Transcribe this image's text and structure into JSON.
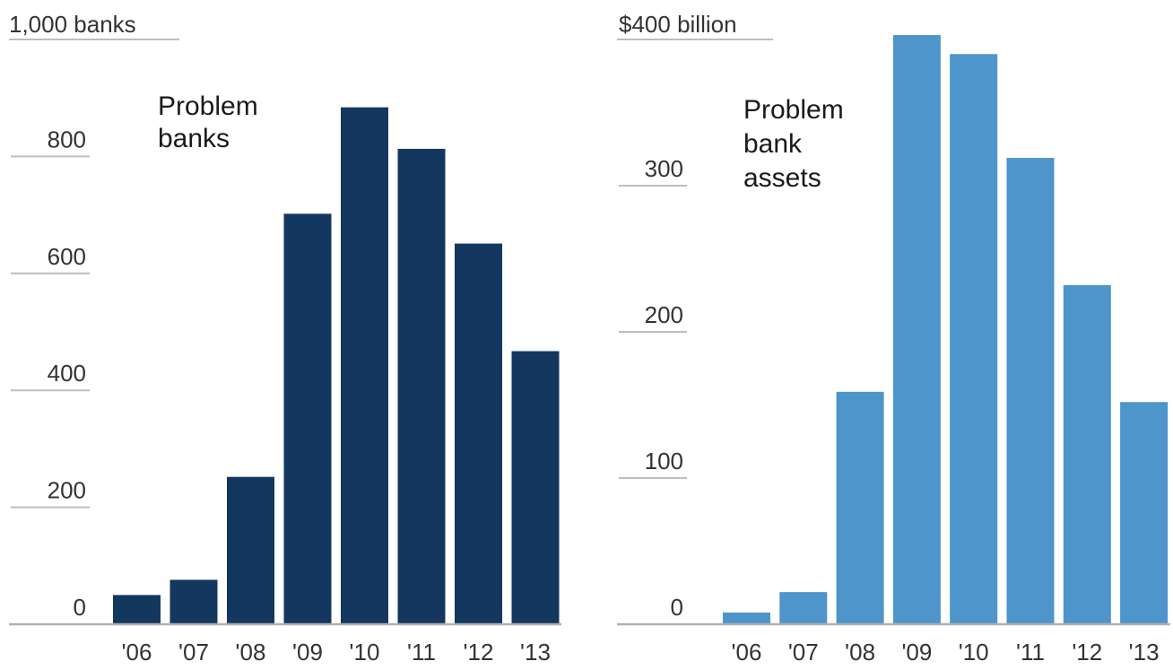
{
  "chart_data": [
    {
      "type": "bar",
      "title": "",
      "xlabel": "",
      "ylabel": "",
      "unit_label": "1,000 banks",
      "annotation": [
        "Problem",
        "banks"
      ],
      "categories": [
        "'06",
        "'07",
        "'08",
        "'09",
        "'10",
        "'11",
        "'12",
        "'13"
      ],
      "values": [
        50,
        76,
        252,
        702,
        884,
        813,
        651,
        467
      ],
      "yticks": [
        "800",
        "600",
        "400",
        "200",
        "0"
      ],
      "ytick_values": [
        800,
        600,
        400,
        200,
        0
      ],
      "ylim": [
        0,
        1000
      ],
      "grid": true,
      "color": "#14375f"
    },
    {
      "type": "bar",
      "title": "",
      "xlabel": "",
      "ylabel": "",
      "unit_label": "$400 billion",
      "annotation": [
        "Problem",
        "bank",
        "assets"
      ],
      "categories": [
        "'06",
        "'07",
        "'08",
        "'09",
        "'10",
        "'11",
        "'12",
        "'13"
      ],
      "values": [
        8,
        22,
        159,
        403,
        390,
        319,
        232,
        152
      ],
      "yticks": [
        "300",
        "200",
        "100",
        "0"
      ],
      "ytick_values": [
        300,
        200,
        100,
        0
      ],
      "ylim": [
        0,
        400
      ],
      "grid": true,
      "color": "#4d95cb"
    }
  ]
}
